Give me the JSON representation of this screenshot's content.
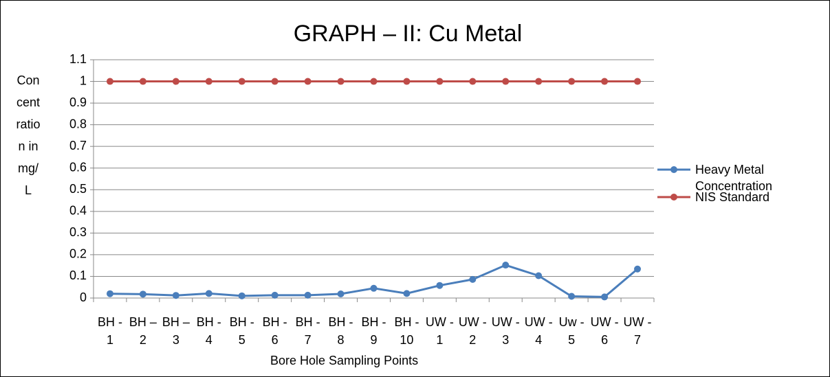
{
  "chart_data": {
    "type": "line",
    "title": "GRAPH – II: Cu Metal",
    "x_label": "Bore Hole Sampling Points",
    "y_label": "Concentration in mg/L",
    "categories": [
      "BH - 1",
      "BH – 2",
      "BH – 3",
      "BH - 4",
      "BH - 5",
      "BH - 6",
      "BH - 7",
      "BH - 8",
      "BH - 9",
      "BH - 10",
      "UW - 1",
      "UW - 2",
      "UW - 3",
      "UW - 4",
      "Uw - 5",
      "UW - 6",
      "UW - 7"
    ],
    "series": [
      {
        "name": "Heavy Metal Concentration",
        "color": "#4a7ebb",
        "values": [
          0.02,
          0.018,
          0.012,
          0.021,
          0.01,
          0.013,
          0.013,
          0.019,
          0.045,
          0.021,
          0.058,
          0.086,
          0.152,
          0.103,
          0.008,
          0.005,
          0.134
        ]
      },
      {
        "name": "NIS Standard",
        "color": "#be4b48",
        "values": [
          1,
          1,
          1,
          1,
          1,
          1,
          1,
          1,
          1,
          1,
          1,
          1,
          1,
          1,
          1,
          1,
          1
        ]
      }
    ],
    "ylim": [
      0,
      1.1
    ],
    "yticks": [
      0,
      0.1,
      0.2,
      0.3,
      0.4,
      0.5,
      0.6,
      0.7,
      0.8,
      0.9,
      1,
      1.1
    ],
    "grid": true,
    "legend": "right"
  }
}
